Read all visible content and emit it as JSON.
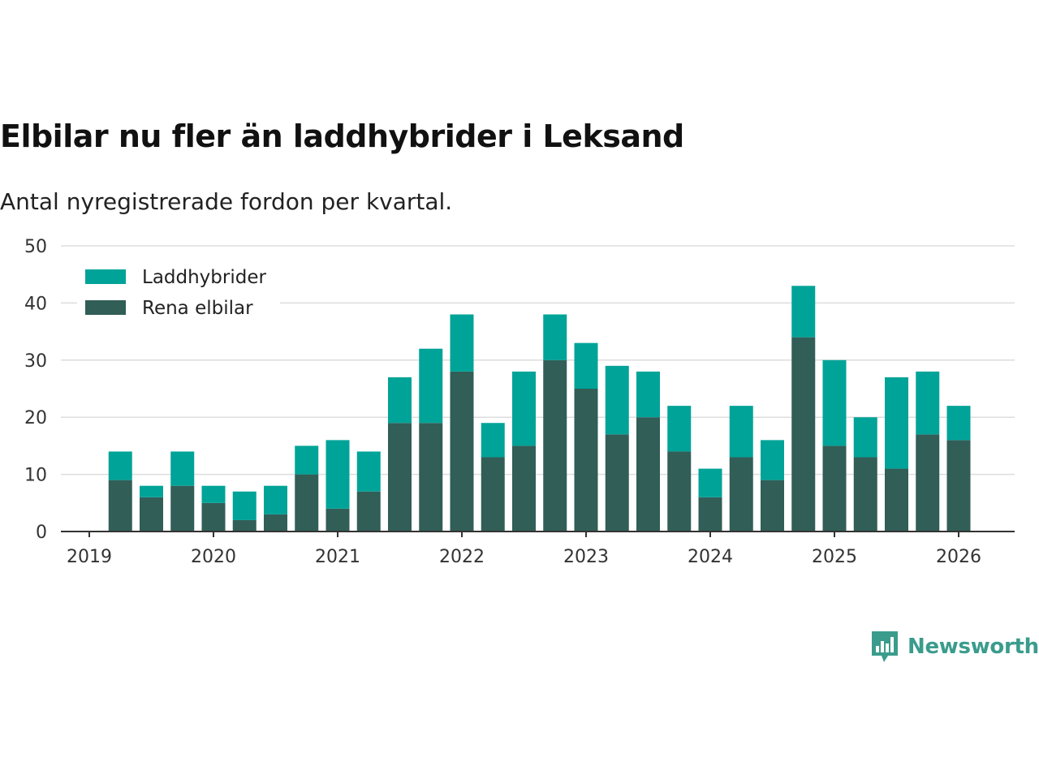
{
  "title": "Elbilar nu fler än laddhybrider i Leksand",
  "subtitle": "Antal nyregistrerade fordon per kvartal.",
  "brand": {
    "name": "Newsworthy",
    "icon": "newsworthy-logo-icon"
  },
  "colors": {
    "laddhybrider": "#00a398",
    "rena_elbilar": "#315e57",
    "grid": "#dddddd",
    "axis": "#333333",
    "brand": "#3a9c8c"
  },
  "chart_data": {
    "type": "bar",
    "stacked": true,
    "title": "Elbilar nu fler än laddhybrider i Leksand",
    "xlabel": "",
    "ylabel": "",
    "ylim": [
      0,
      50
    ],
    "yticks": [
      "0",
      "10",
      "20",
      "30",
      "40",
      "50"
    ],
    "xlim": [
      2019.0,
      2026.45
    ],
    "xticks": [
      "2019",
      "2020",
      "2021",
      "2022",
      "2023",
      "2024",
      "2025",
      "2026"
    ],
    "legend_position": "top-left",
    "x": [
      2019.25,
      2019.5,
      2019.75,
      2020.0,
      2020.25,
      2020.5,
      2020.75,
      2021.0,
      2021.25,
      2021.5,
      2021.75,
      2022.0,
      2022.25,
      2022.5,
      2022.75,
      2023.0,
      2023.25,
      2023.5,
      2023.75,
      2024.0,
      2024.25,
      2024.5,
      2024.75,
      2025.0,
      2025.25,
      2025.5,
      2025.75,
      2026.0
    ],
    "series": [
      {
        "name": "Rena elbilar",
        "key": "rena_elbilar",
        "values": [
          9,
          6,
          8,
          5,
          2,
          3,
          10,
          4,
          7,
          19,
          19,
          28,
          13,
          15,
          30,
          25,
          17,
          20,
          14,
          6,
          13,
          9,
          34,
          15,
          13,
          11,
          17,
          16
        ]
      },
      {
        "name": "Laddhybrider",
        "key": "laddhybrider",
        "values": [
          5,
          2,
          6,
          3,
          5,
          5,
          5,
          12,
          7,
          8,
          13,
          10,
          6,
          13,
          8,
          8,
          12,
          8,
          8,
          5,
          9,
          7,
          9,
          15,
          7,
          16,
          11,
          6
        ]
      }
    ],
    "legend": [
      "Laddhybrider",
      "Rena elbilar"
    ]
  }
}
